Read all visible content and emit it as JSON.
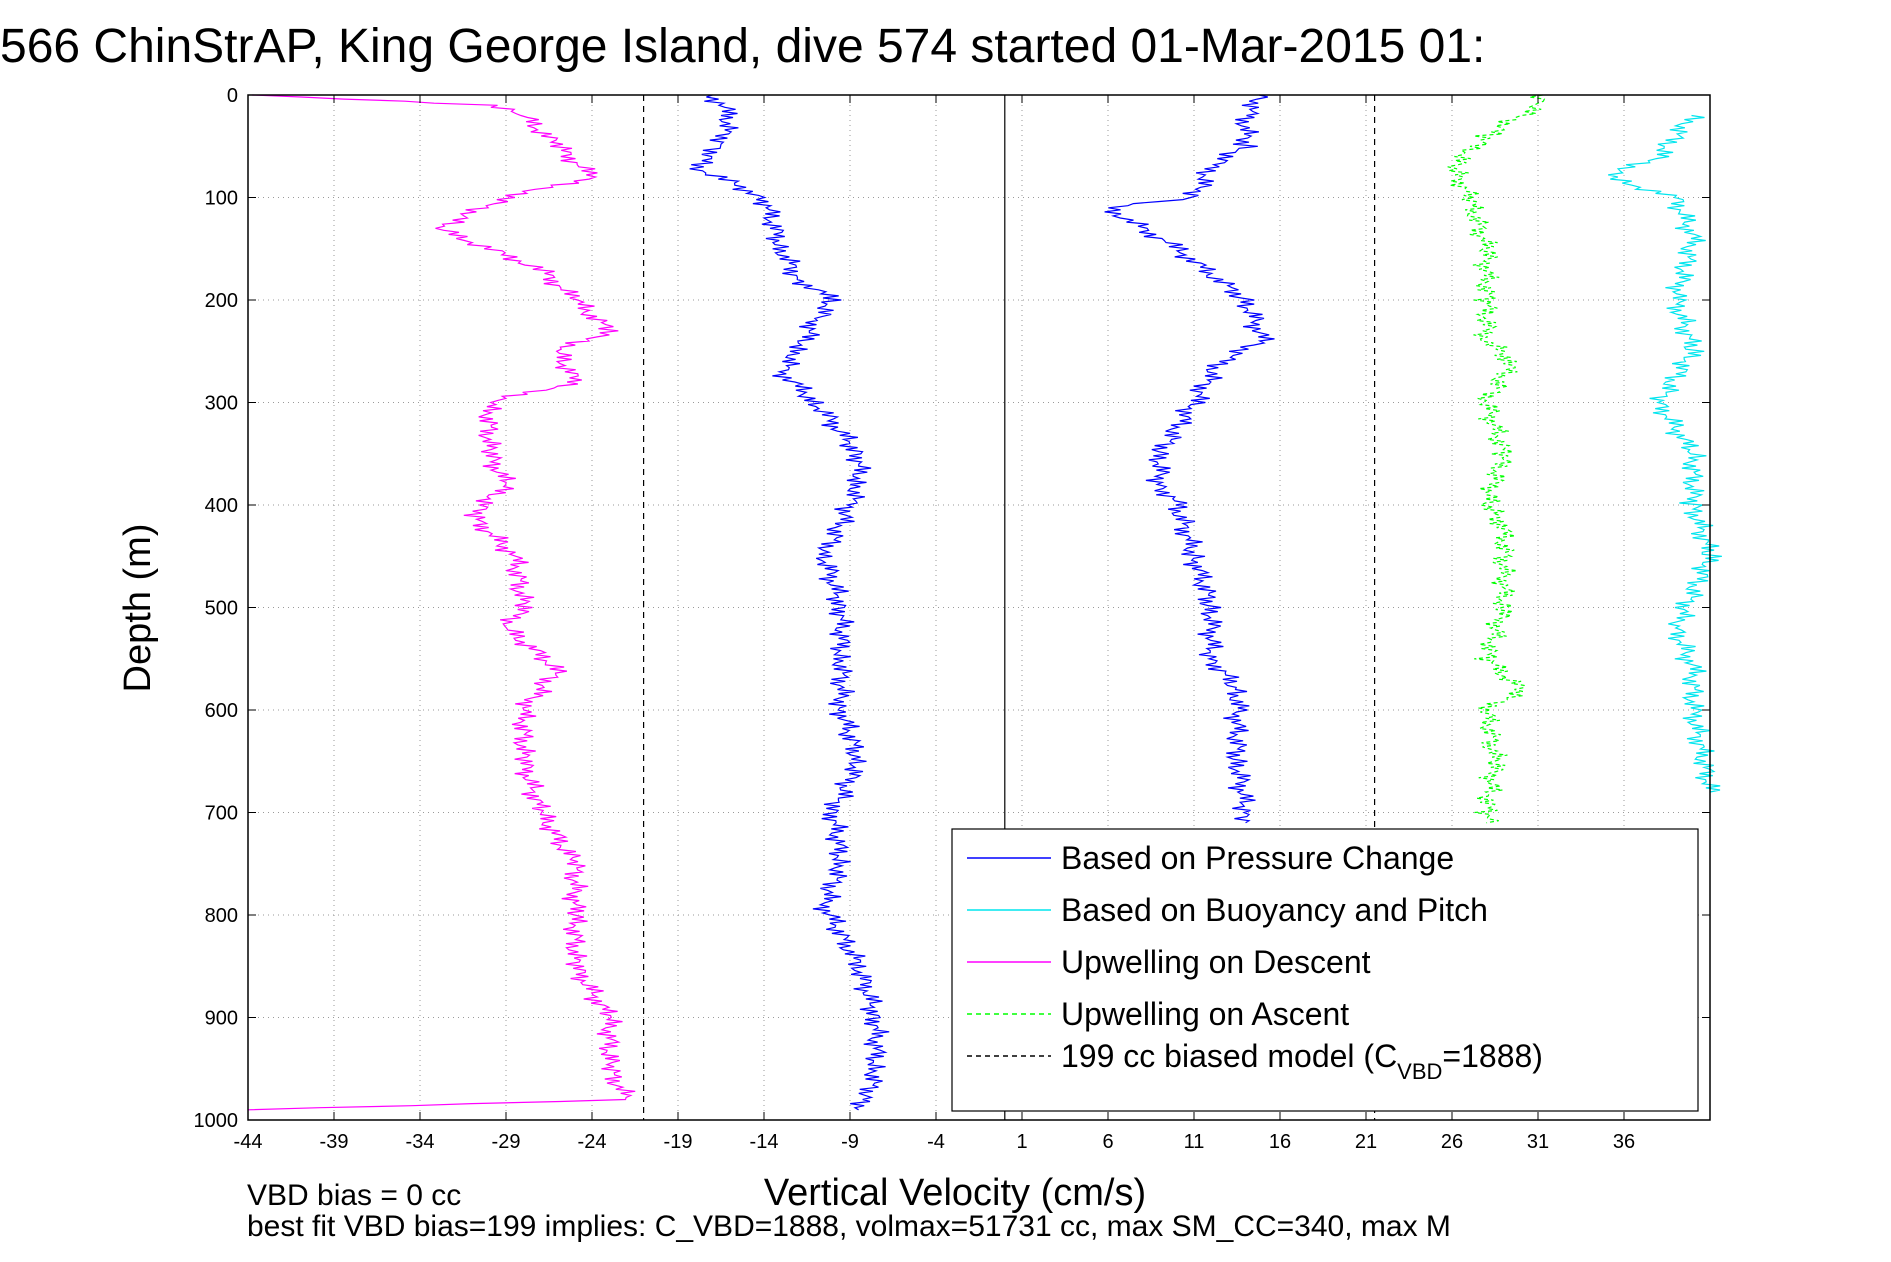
{
  "chart_data": {
    "type": "line",
    "title": "566 ChinStrAP, King George Island, dive 574 started 01-Mar-2015 01:",
    "xlabel": "Vertical Velocity (cm/s)",
    "ylabel": "Depth (m)",
    "xlim": [
      -44,
      41
    ],
    "ylim": [
      0,
      1000
    ],
    "y_reversed": true,
    "grid": true,
    "x_ticks": [
      -44,
      -39,
      -34,
      -29,
      -24,
      -19,
      -14,
      -9,
      -4,
      1,
      6,
      11,
      16,
      21,
      26,
      31,
      36
    ],
    "y_ticks": [
      0,
      100,
      200,
      300,
      400,
      500,
      600,
      700,
      800,
      900,
      1000
    ],
    "legend_location": "bottom-right",
    "legend": [
      {
        "label": "Based on Pressure Change",
        "color": "#0000ff",
        "style": "solid"
      },
      {
        "label": "Based on Buoyancy and Pitch",
        "color": "#00e5ee",
        "style": "solid"
      },
      {
        "label": "Upwelling on Descent",
        "color": "#ff00ff",
        "style": "solid"
      },
      {
        "label": "Upwelling on Ascent",
        "color": "#00ff00",
        "style": "dashed"
      },
      {
        "label": "199 cc biased model (C",
        "label_sub": "VBD",
        "label_tail": "=1888)",
        "color": "#000000",
        "style": "dashed"
      }
    ],
    "reference_lines": [
      {
        "x": -21,
        "style": "dashed",
        "color": "#000000"
      },
      {
        "x": 0,
        "style": "solid",
        "color": "#000000"
      },
      {
        "x": 21.5,
        "style": "dashed",
        "color": "#000000"
      }
    ],
    "series": [
      {
        "name": "Based on Pressure Change",
        "segment": "descent",
        "color": "#0000ff",
        "style": "solid",
        "depth": [
          0,
          20,
          50,
          70,
          100,
          150,
          180,
          200,
          220,
          250,
          270,
          300,
          350,
          380,
          400,
          450,
          500,
          550,
          600,
          650,
          700,
          750,
          790,
          850,
          900,
          950,
          980,
          990
        ],
        "velocity": [
          -17,
          -16,
          -16.5,
          -18,
          -14,
          -13,
          -12,
          -10,
          -11,
          -12,
          -13,
          -11,
          -8.5,
          -8.5,
          -9,
          -10.5,
          -9.5,
          -9.5,
          -9.5,
          -8.5,
          -10,
          -9.5,
          -10.5,
          -8.5,
          -7.5,
          -7.5,
          -8,
          -8.5
        ]
      },
      {
        "name": "Based on Pressure Change",
        "segment": "ascent",
        "color": "#0000ff",
        "style": "solid",
        "depth": [
          0,
          20,
          50,
          70,
          100,
          110,
          150,
          200,
          240,
          260,
          300,
          350,
          380,
          400,
          450,
          500,
          550,
          580,
          600,
          650,
          700,
          710
        ],
        "velocity": [
          15,
          14,
          14,
          12,
          11,
          6,
          10,
          14,
          15,
          12.5,
          11,
          9,
          9,
          10,
          11,
          12,
          12,
          13.5,
          13.5,
          13.5,
          14,
          14
        ]
      },
      {
        "name": "Based on Buoyancy and Pitch",
        "color": "#00e5ee",
        "style": "solid",
        "depth": [
          20,
          60,
          80,
          100,
          140,
          200,
          250,
          300,
          350,
          400,
          450,
          520,
          560,
          600,
          680
        ],
        "velocity": [
          40,
          38,
          35,
          39,
          40,
          39,
          40,
          38,
          40,
          40,
          41,
          39,
          40,
          40,
          41
        ]
      },
      {
        "name": "Upwelling on Descent",
        "color": "#ff00ff",
        "style": "solid",
        "depth": [
          0,
          10,
          20,
          50,
          80,
          100,
          130,
          170,
          200,
          230,
          250,
          280,
          300,
          350,
          380,
          410,
          450,
          500,
          520,
          560,
          600,
          650,
          700,
          750,
          800,
          850,
          900,
          950,
          980,
          990
        ],
        "velocity": [
          -44,
          -30,
          -28,
          -26,
          -24,
          -29,
          -33,
          -27,
          -25,
          -23,
          -26,
          -25,
          -30,
          -30,
          -29,
          -31,
          -28.5,
          -28,
          -29,
          -26,
          -28,
          -28,
          -27,
          -25,
          -25,
          -25,
          -23,
          -23,
          -22,
          -44
        ]
      },
      {
        "name": "Upwelling on Ascent",
        "color": "#00ff00",
        "style": "dashed",
        "depth": [
          0,
          10,
          40,
          70,
          100,
          150,
          200,
          240,
          260,
          300,
          350,
          400,
          420,
          500,
          550,
          580,
          600,
          650,
          700,
          710
        ],
        "velocity": [
          31,
          31,
          28,
          26,
          27,
          28,
          28,
          28,
          29.5,
          28,
          29,
          28,
          29,
          29,
          28,
          30,
          28,
          28.5,
          28,
          28
        ]
      }
    ]
  },
  "footer": {
    "line1": "VBD bias = 0 cc",
    "line2": "best fit VBD bias=199 implies: C_VBD=1888, volmax=51731 cc, max SM_CC=340, max M"
  }
}
